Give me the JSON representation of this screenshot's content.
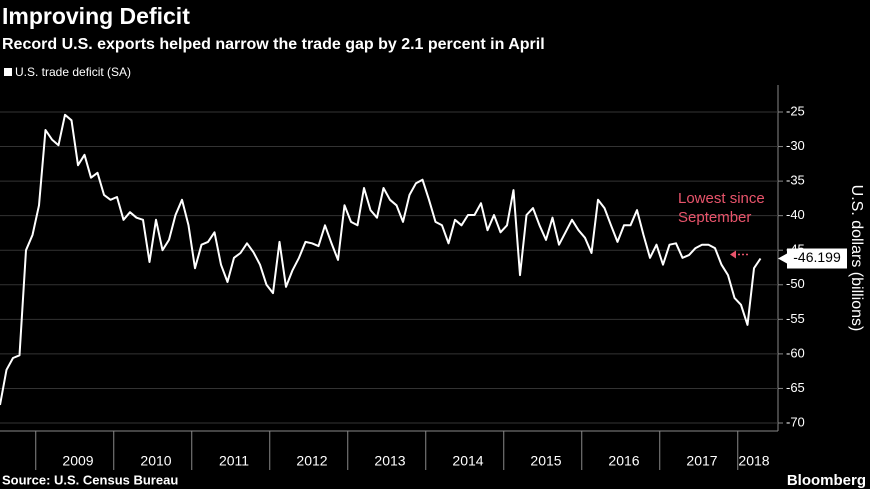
{
  "chart_data": {
    "type": "line",
    "title": "Improving Deficit",
    "subtitle": "Record U.S. exports helped narrow the trade gap by 2.1 percent in April",
    "y_axis_label": "U.S. dollars (billions)",
    "source": "Source: U.S. Census Bureau",
    "brand": "Bloomberg",
    "annotation": [
      "Lowest since",
      "September"
    ],
    "annotation_color": "#e8546b",
    "categories": [
      null,
      null,
      null,
      null,
      null,
      null,
      null,
      null,
      null,
      null,
      null,
      null,
      "2009",
      null,
      null,
      null,
      null,
      null,
      null,
      null,
      null,
      null,
      null,
      null,
      "2010",
      null,
      null,
      null,
      null,
      null,
      null,
      null,
      null,
      null,
      null,
      null,
      "2011",
      null,
      null,
      null,
      null,
      null,
      null,
      null,
      null,
      null,
      null,
      null,
      "2012",
      null,
      null,
      null,
      null,
      null,
      null,
      null,
      null,
      null,
      null,
      null,
      "2013",
      null,
      null,
      null,
      null,
      null,
      null,
      null,
      null,
      null,
      null,
      null,
      "2014",
      null,
      null,
      null,
      null,
      null,
      null,
      null,
      null,
      null,
      null,
      null,
      "2015",
      null,
      null,
      null,
      null,
      null,
      null,
      null,
      null,
      null,
      null,
      null,
      "2016",
      null,
      null,
      null,
      null,
      null,
      null,
      null,
      null,
      null,
      null,
      null,
      "2017",
      null,
      null,
      null,
      null,
      null,
      null,
      null,
      "2018",
      null
    ],
    "series": [
      {
        "name": "U.S. trade deficit (SA)",
        "color": "#ffffff",
        "values": [
          -67.4,
          -62.3,
          -60.6,
          -60.2,
          -45,
          -42.8,
          -38.5,
          -27.6,
          -29,
          -29.8,
          -25.4,
          -26.2,
          -32.7,
          -31.2,
          -34.5,
          -33.8,
          -37,
          -37.7,
          -37.3,
          -40.6,
          -39.5,
          -40.3,
          -40.6,
          -46.7,
          -40.6,
          -45,
          -43.5,
          -39.9,
          -37.7,
          -41.4,
          -47.6,
          -44.2,
          -43.8,
          -42.4,
          -47.1,
          -49.6,
          -46.1,
          -45.4,
          -44,
          -45.3,
          -47.1,
          -50,
          -51.2,
          -43.8,
          -50.3,
          -47.9,
          -46.1,
          -43.8,
          -44,
          -44.4,
          -41.4,
          -44,
          -46.4,
          -38.5,
          -40.9,
          -41.4,
          -36,
          -39.2,
          -40.3,
          -36,
          -37.7,
          -38.5,
          -40.9,
          -37,
          -35.3,
          -34.8,
          -37.7,
          -40.9,
          -41.4,
          -44,
          -40.6,
          -41.4,
          -39.9,
          -39.9,
          -38.2,
          -42.1,
          -39.9,
          -42.4,
          -41.4,
          -36.3,
          -48.6,
          -39.9,
          -38.9,
          -41.4,
          -43.5,
          -40.3,
          -44.2,
          -42.4,
          -40.6,
          -42.1,
          -43.2,
          -45.4,
          -37.7,
          -38.9,
          -41.4,
          -43.8,
          -41.4,
          -41.4,
          -39.2,
          -42.8,
          -46.1,
          -44.2,
          -47.1,
          -44.2,
          -44,
          -46.1,
          -45.7,
          -44.7,
          -44.2,
          -44.2,
          -44.7,
          -47.1,
          -48.6,
          -51.9,
          -52.9,
          -55.8,
          -47.6,
          -46.199
        ]
      }
    ],
    "ylim": [
      -25,
      -70
    ],
    "yticks": [
      -25,
      -30,
      -35,
      -40,
      -45,
      -50,
      -55,
      -60,
      -65,
      -70
    ],
    "grid": true
  }
}
